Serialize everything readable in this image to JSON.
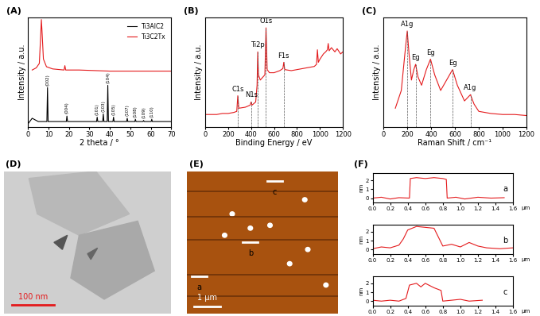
{
  "chart_data": [
    {
      "type": "line",
      "label": "(A)",
      "xlabel": "2 theta / °",
      "ylabel": "Intensity / a.u.",
      "xlim": [
        0,
        70
      ],
      "xticks": [
        0,
        10,
        20,
        30,
        40,
        50,
        60,
        70
      ],
      "ylim": [
        0,
        100
      ],
      "tick_labels": "x",
      "legend": "upper right",
      "series": [
        {
          "name": "Ti3AlC2",
          "color": "#000000",
          "x": [
            0,
            2,
            5,
            9.2,
            9.5,
            9.8,
            18.7,
            19,
            19.3,
            33.5,
            33.8,
            34.1,
            36.5,
            36.8,
            37.1,
            38.7,
            39,
            39.3,
            41.5,
            41.8,
            42.1,
            48.2,
            48.5,
            48.8,
            52.2,
            52.5,
            52.8,
            56.2,
            56.5,
            56.8,
            60.2,
            60.5,
            60.8,
            70
          ],
          "values": [
            3,
            8,
            5,
            5,
            36,
            5,
            5,
            10,
            5,
            5,
            9,
            5,
            5,
            12,
            5,
            5,
            38,
            5,
            5,
            9,
            5,
            5,
            8,
            5,
            5,
            7,
            5,
            5,
            6,
            5,
            5,
            7,
            5,
            5
          ]
        },
        {
          "name": "Ti3C2Tx",
          "color": "#e41a1c",
          "x": [
            2,
            4,
            5.5,
            6.2,
            6.5,
            6.8,
            7.5,
            9,
            12,
            17.6,
            18,
            18.4,
            25,
            40,
            55,
            70
          ],
          "values": [
            52,
            54,
            58,
            85,
            98,
            88,
            62,
            55,
            53,
            52,
            56,
            52,
            52,
            51,
            51,
            51
          ]
        }
      ],
      "peak_labels": [
        {
          "label": "(002)",
          "x": 9.5
        },
        {
          "label": "(004)",
          "x": 19
        },
        {
          "label": "(101)",
          "x": 33.8
        },
        {
          "label": "(103)",
          "x": 36.8
        },
        {
          "label": "(104)",
          "x": 39
        },
        {
          "label": "(105)",
          "x": 41.8
        },
        {
          "label": "(107)",
          "x": 48.5
        },
        {
          "label": "(108)",
          "x": 52.5
        },
        {
          "label": "(109)",
          "x": 56.5
        },
        {
          "label": "(110)",
          "x": 60.5
        }
      ]
    },
    {
      "type": "line",
      "label": "(B)",
      "xlabel": "Binding Energy / eV",
      "ylabel": "Intensity / a.u.",
      "xlim": [
        0,
        1200
      ],
      "xticks": [
        0,
        200,
        400,
        600,
        800,
        1000,
        1200
      ],
      "ylim": [
        0,
        105
      ],
      "tick_labels": "x",
      "color": "#e41a1c",
      "x": [
        0,
        50,
        100,
        150,
        200,
        250,
        275,
        284,
        293,
        350,
        392,
        400,
        408,
        440,
        452,
        458,
        464,
        480,
        520,
        530,
        540,
        560,
        600,
        650,
        677,
        685,
        693,
        750,
        800,
        850,
        900,
        950,
        970,
        978,
        986,
        1000,
        1030,
        1050,
        1065,
        1072,
        1080,
        1100,
        1130,
        1150,
        1180,
        1200
      ],
      "values": [
        12,
        12,
        12,
        13,
        13,
        14,
        15,
        30,
        18,
        19,
        21,
        24,
        21,
        24,
        40,
        72,
        50,
        45,
        50,
        95,
        55,
        52,
        52,
        54,
        56,
        62,
        55,
        54,
        55,
        56,
        57,
        58,
        60,
        74,
        62,
        65,
        70,
        72,
        74,
        80,
        73,
        76,
        72,
        75,
        70,
        72
      ],
      "peak_labels": [
        {
          "label": "C1s",
          "x": 284
        },
        {
          "label": "N1s",
          "x": 400
        },
        {
          "label": "Ti2p",
          "x": 458
        },
        {
          "label": "O1s",
          "x": 530
        },
        {
          "label": "F1s",
          "x": 685
        }
      ]
    },
    {
      "type": "line",
      "label": "(C)",
      "xlabel": "Raman Shift / cm⁻¹",
      "ylabel": "Intensity / a.u.",
      "xlim": [
        0,
        1200
      ],
      "xticks": [
        0,
        200,
        400,
        600,
        800,
        1000,
        1200
      ],
      "ylim": [
        0,
        105
      ],
      "tick_labels": "x",
      "color": "#e41a1c",
      "x": [
        100,
        150,
        180,
        200,
        215,
        235,
        255,
        270,
        290,
        320,
        360,
        395,
        430,
        480,
        530,
        580,
        620,
        680,
        730,
        760,
        800,
        900,
        1000,
        1100,
        1200
      ],
      "values": [
        18,
        35,
        70,
        92,
        70,
        45,
        55,
        60,
        48,
        40,
        55,
        65,
        50,
        35,
        45,
        55,
        40,
        25,
        31,
        22,
        15,
        13,
        12,
        12,
        11
      ],
      "peak_labels": [
        {
          "label": "A1g",
          "x": 200
        },
        {
          "label": "Eg",
          "x": 270
        },
        {
          "label": "Eg",
          "x": 395
        },
        {
          "label": "Eg",
          "x": 580
        },
        {
          "label": "A1g",
          "x": 730
        }
      ]
    },
    {
      "type": "image",
      "label": "(D)",
      "scale_bar": "100 nm"
    },
    {
      "type": "image",
      "label": "(E)",
      "scale_bar": "1 μm",
      "markers": [
        "a",
        "b",
        "c"
      ]
    },
    {
      "type": "line",
      "label": "(F)",
      "xlabel": "μm",
      "ylabel": "nm",
      "color": "#e41a1c",
      "xlim": [
        0,
        1.6
      ],
      "xticks": [
        {
          "value": 0,
          "label": "0.0"
        },
        0.2,
        0.4,
        0.6,
        0.8,
        {
          "value": 1,
          "label": "1.0"
        },
        1.2,
        1.4,
        1.6
      ],
      "ylim": [
        -0.5,
        2.8
      ],
      "yticks": [
        0,
        1,
        2
      ],
      "series": [
        {
          "name": "a",
          "x": [
            0,
            0.1,
            0.2,
            0.3,
            0.42,
            0.43,
            0.5,
            0.6,
            0.7,
            0.8,
            0.84,
            0.85,
            0.95,
            1.05,
            1.2,
            1.35,
            1.5
          ],
          "values": [
            0,
            0.1,
            -0.1,
            0.05,
            0,
            2.2,
            2.3,
            2.2,
            2.3,
            2.2,
            2.1,
            0,
            0.1,
            -0.1,
            0.1,
            0,
            0.05
          ]
        },
        {
          "name": "b",
          "x": [
            0,
            0.1,
            0.2,
            0.3,
            0.35,
            0.4,
            0.45,
            0.5,
            0.6,
            0.7,
            0.75,
            0.8,
            0.9,
            1.0,
            1.1,
            1.2,
            1.3,
            1.45,
            1.6
          ],
          "values": [
            0.1,
            0.3,
            0.2,
            0.5,
            1.2,
            2.2,
            2.4,
            2.6,
            2.5,
            2.4,
            1.4,
            0.4,
            0.6,
            0.3,
            0.8,
            0.4,
            0.2,
            0.1,
            0.2
          ]
        },
        {
          "name": "c",
          "x": [
            0,
            0.1,
            0.2,
            0.3,
            0.38,
            0.42,
            0.5,
            0.55,
            0.6,
            0.7,
            0.78,
            0.8,
            0.9,
            1.0,
            1.1,
            1.25
          ],
          "values": [
            0.1,
            0,
            0.1,
            0,
            0.3,
            1.8,
            2.0,
            1.6,
            2.0,
            1.5,
            1.2,
            0,
            0.1,
            0.2,
            0,
            0.1
          ]
        }
      ]
    }
  ]
}
